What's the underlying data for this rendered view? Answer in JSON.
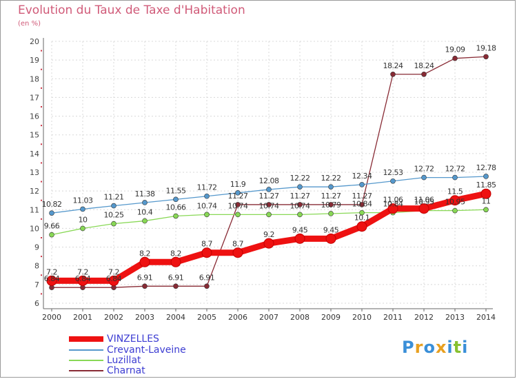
{
  "header": {
    "title": "Evolution du Taux de Taxe d'Habitation",
    "unit": "(en %)"
  },
  "logo": {
    "text": "Proxiti"
  },
  "colors": {
    "vinzelles": "#ee1111",
    "crevant": "#5598cc",
    "luzillat": "#88d855",
    "charnat": "#882a34",
    "title": "#d05a78",
    "legend_text": "#3c3cd2"
  },
  "chart_data": {
    "type": "line",
    "title": "Evolution du Taux de Taxe d'Habitation",
    "ylabel": "(en %)",
    "xlabel": "",
    "ylim": [
      6,
      20
    ],
    "grid": true,
    "legend_position": "bottom-left",
    "x": [
      "2000",
      "2001",
      "2002",
      "2003",
      "2004",
      "2005",
      "2006",
      "2007",
      "2008",
      "2009",
      "2010",
      "2011",
      "2012",
      "2013",
      "2014"
    ],
    "y_ticks": [
      "6",
      "7",
      "8",
      "9",
      "10",
      "11",
      "12",
      "13",
      "14",
      "15",
      "16",
      "17",
      "18",
      "19",
      "20"
    ],
    "series": [
      {
        "key": "vinzelles",
        "name": "VINZELLES",
        "values": [
          7.2,
          7.2,
          7.2,
          8.2,
          8.2,
          8.7,
          8.7,
          9.2,
          9.45,
          9.45,
          10.1,
          11.06,
          11.06,
          11.5,
          11.85
        ],
        "labels": [
          "7.2",
          "7.2",
          "7.2",
          "8.2",
          "8.2",
          "8.7",
          "8.7",
          "9.2",
          "9.45",
          "9.45",
          "10.1",
          "11.06",
          "11.06",
          "11.5",
          "11.85"
        ]
      },
      {
        "key": "crevant",
        "name": "Crevant-Laveine",
        "values": [
          10.82,
          11.03,
          11.21,
          11.38,
          11.55,
          11.72,
          11.9,
          12.08,
          12.22,
          12.22,
          12.34,
          12.53,
          12.72,
          12.72,
          12.78
        ],
        "labels": [
          "10.82",
          "11.03",
          "11.21",
          "11.38",
          "11.55",
          "11.72",
          "11.9",
          "12.08",
          "12.22",
          "12.22",
          "12.34",
          "12.53",
          "12.72",
          "12.72",
          "12.78"
        ]
      },
      {
        "key": "luzillat",
        "name": "Luzillat",
        "values": [
          9.66,
          10,
          10.25,
          10.4,
          10.66,
          10.74,
          10.74,
          10.74,
          10.74,
          10.79,
          10.84,
          10.84,
          10.95,
          10.95,
          11
        ],
        "labels": [
          "9.66",
          "10",
          "10.25",
          "10.4",
          "10.66",
          "10.74",
          "10.74",
          "10.74",
          "10.74",
          "10.79",
          "10.84",
          "10.84",
          "10.95",
          "10.95",
          "11"
        ]
      },
      {
        "key": "charnat",
        "name": "Charnat",
        "values": [
          6.84,
          6.84,
          6.84,
          6.91,
          6.91,
          6.91,
          11.27,
          11.27,
          11.27,
          11.27,
          11.27,
          18.24,
          18.24,
          19.09,
          19.18
        ],
        "labels": [
          "6.84",
          "6.84",
          "6.84",
          "6.91",
          "6.91",
          "6.91",
          "11.27",
          "11.27",
          "11.27",
          "11.27",
          "11.27",
          "18.24",
          "18.24",
          "19.09",
          "19.18"
        ]
      }
    ]
  }
}
